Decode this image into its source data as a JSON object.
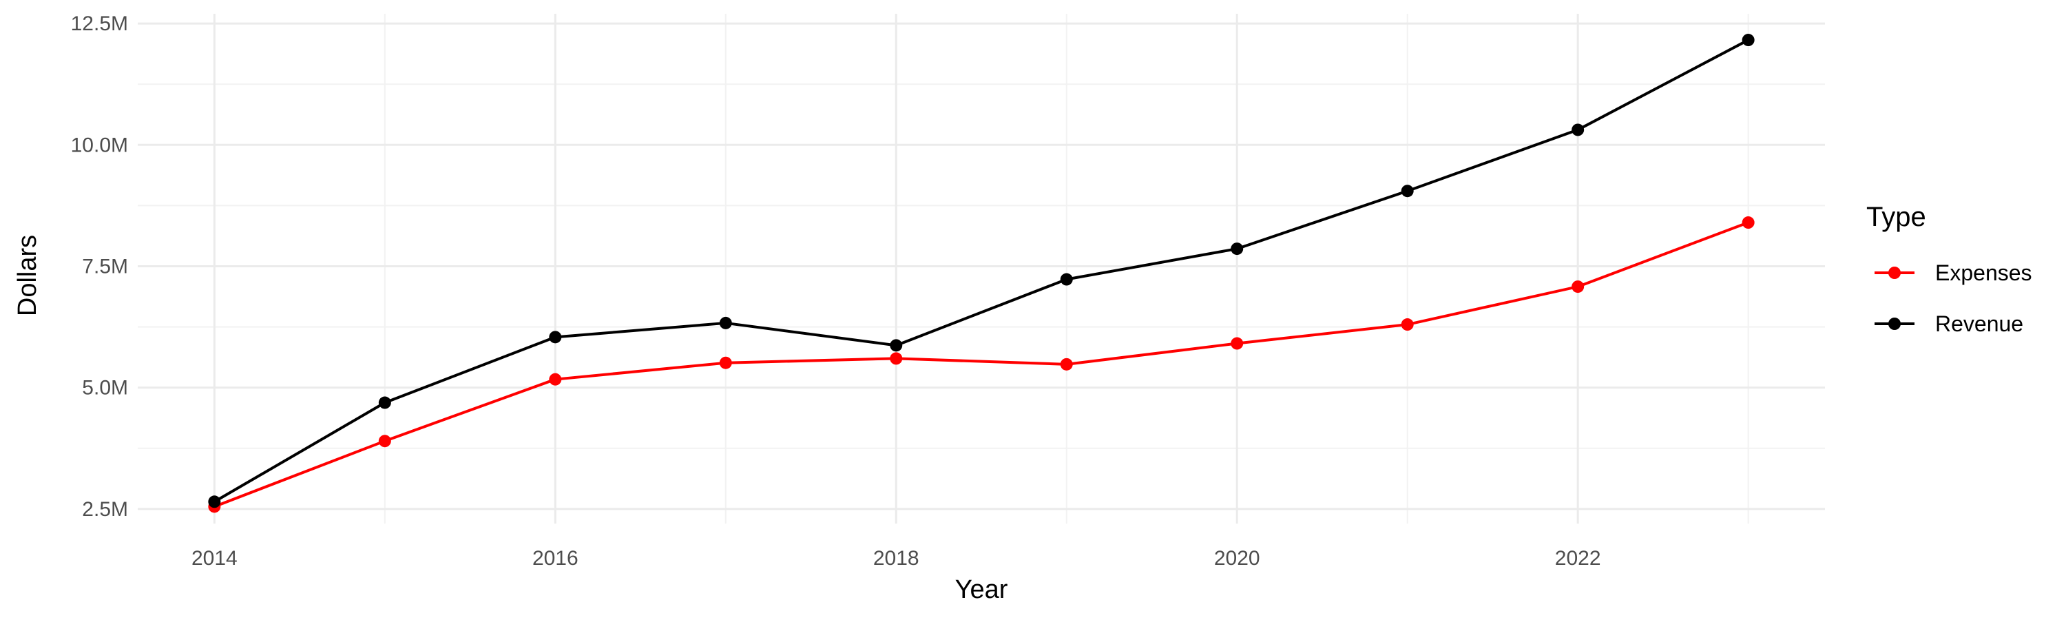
{
  "chart_data": {
    "type": "line",
    "title": "",
    "xlabel": "Year",
    "ylabel": "Dollars",
    "x": [
      2014,
      2015,
      2016,
      2017,
      2018,
      2019,
      2020,
      2021,
      2022,
      2023
    ],
    "xlim": [
      2013.55,
      2023.45
    ],
    "ylim": [
      2200000,
      12700000
    ],
    "x_ticks": [
      2014,
      2016,
      2018,
      2020,
      2022
    ],
    "x_tick_labels": [
      "2014",
      "2016",
      "2018",
      "2020",
      "2022"
    ],
    "y_ticks": [
      2500000,
      5000000,
      7500000,
      10000000,
      12500000
    ],
    "y_tick_labels": [
      "2.5M",
      "5.0M",
      "7.5M",
      "10.0M",
      "12.5M"
    ],
    "grid": true,
    "legend": {
      "title": "Type",
      "position": "right"
    },
    "series": [
      {
        "name": "Expenses",
        "color": "#ff0000",
        "values": [
          2550000,
          3900000,
          5170000,
          5510000,
          5600000,
          5480000,
          5910000,
          6300000,
          7080000,
          8400000
        ]
      },
      {
        "name": "Revenue",
        "color": "#000000",
        "values": [
          2650000,
          4690000,
          6040000,
          6330000,
          5870000,
          7230000,
          7860000,
          9050000,
          10310000,
          12160000
        ]
      }
    ]
  }
}
